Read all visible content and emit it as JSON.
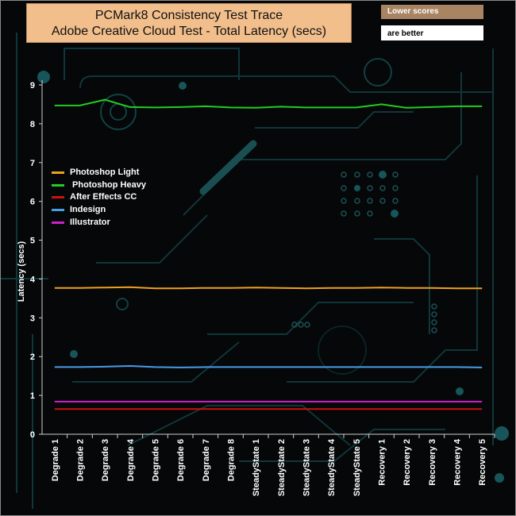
{
  "header": {
    "title_line1": "PCMark8 Consistency Test Trace",
    "title_line2": "Adobe Creative Cloud Test -  Total Latency (secs)",
    "note_line1": "Lower scores",
    "note_line2": "are better"
  },
  "chart_data": {
    "type": "line",
    "title": "PCMark8 Consistency Test Trace Adobe Creative Cloud Test -  Total Latency (secs)",
    "xlabel": "",
    "ylabel": "Latency (secs)",
    "ylim": [
      0,
      9
    ],
    "yticks": [
      "0",
      "1",
      "2",
      "3",
      "4",
      "5",
      "6",
      "7",
      "8",
      "9"
    ],
    "grid": false,
    "legend_position": "left-middle",
    "categories": [
      "Degrade 1",
      "Degrade 2",
      "Degrade 3",
      "Degrade 4",
      "Degrade 5",
      "Degrade 6",
      "Degrade 7",
      "Degrade 8",
      "SteadyState 1",
      "SteadyState 2",
      "SteadyState 3",
      "SteadyState 4",
      "SteadyState 5",
      "Recovery 1",
      "Recovery 2",
      "Recovery 3",
      "Recovery 4",
      "Recovery 5"
    ],
    "series": [
      {
        "name": "Photoshop Light",
        "color": "#f0a020",
        "values": [
          3.77,
          3.77,
          3.78,
          3.79,
          3.76,
          3.76,
          3.77,
          3.77,
          3.78,
          3.77,
          3.76,
          3.77,
          3.77,
          3.78,
          3.77,
          3.77,
          3.76,
          3.76
        ]
      },
      {
        "name": " Photoshop Heavy",
        "color": "#22cc22",
        "values": [
          8.47,
          8.47,
          8.62,
          8.43,
          8.42,
          8.43,
          8.45,
          8.42,
          8.41,
          8.44,
          8.42,
          8.42,
          8.42,
          8.5,
          8.41,
          8.43,
          8.45,
          8.45
        ]
      },
      {
        "name": "After Effects CC",
        "color": "#cc1111",
        "values": [
          0.65,
          0.65,
          0.65,
          0.65,
          0.65,
          0.65,
          0.65,
          0.65,
          0.65,
          0.65,
          0.65,
          0.65,
          0.65,
          0.65,
          0.65,
          0.65,
          0.65,
          0.65
        ]
      },
      {
        "name": "Indesign",
        "color": "#4a9be8",
        "values": [
          1.73,
          1.73,
          1.74,
          1.76,
          1.73,
          1.72,
          1.73,
          1.73,
          1.73,
          1.73,
          1.73,
          1.73,
          1.73,
          1.73,
          1.73,
          1.73,
          1.73,
          1.72
        ]
      },
      {
        "name": "Illustrator",
        "color": "#cc22cc",
        "values": [
          0.84,
          0.84,
          0.84,
          0.84,
          0.84,
          0.84,
          0.84,
          0.84,
          0.84,
          0.84,
          0.84,
          0.84,
          0.84,
          0.84,
          0.84,
          0.84,
          0.84,
          0.84
        ]
      }
    ]
  }
}
